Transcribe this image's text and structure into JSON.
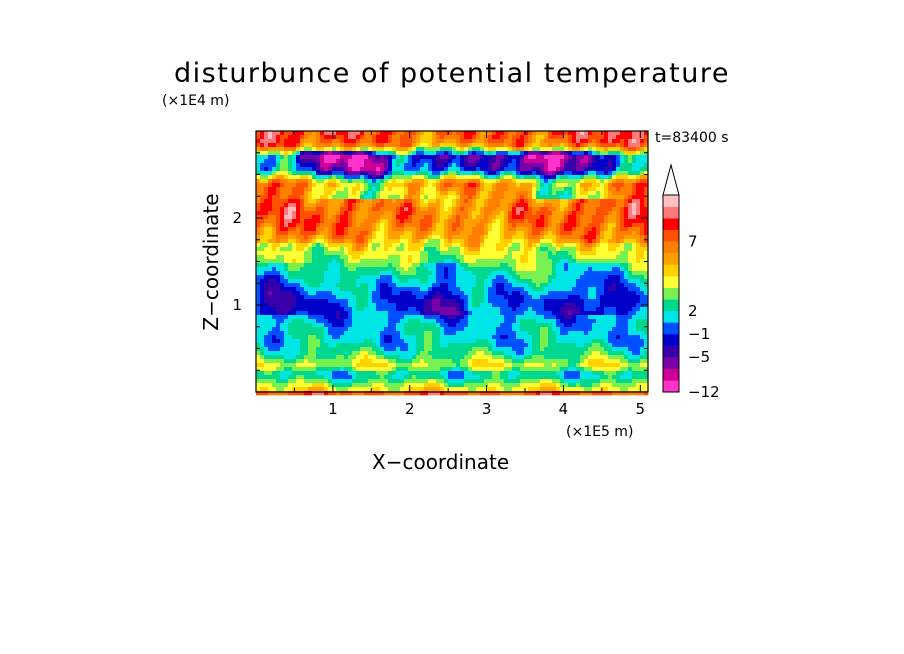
{
  "chart_data": {
    "type": "heatmap",
    "title": "disturbunce of potential temperature",
    "time_label": "t=83400 s",
    "xlabel": "X−coordinate",
    "ylabel": "Z−coordinate",
    "x_unit": "(×1E5 m)",
    "y_unit": "(×1E4 m)",
    "xlim": [
      0,
      5.1
    ],
    "ylim": [
      0,
      3.0
    ],
    "x_ticks": [
      1,
      2,
      3,
      4,
      5
    ],
    "x_tick_labels": [
      "1",
      "2",
      "3",
      "4",
      "5"
    ],
    "y_ticks": [
      1,
      2
    ],
    "y_tick_labels": [
      "1",
      "2"
    ],
    "colorbar": {
      "extend": "max",
      "labels": [
        {
          "value": 7,
          "text": "7"
        },
        {
          "value": 2,
          "text": "2"
        },
        {
          "value": -1,
          "text": "−1"
        },
        {
          "value": -5,
          "text": "−5"
        },
        {
          "value": -12,
          "text": "−12"
        }
      ],
      "colors": [
        "#ff33cc",
        "#cc0099",
        "#7a00a8",
        "#3800a8",
        "#0000c8",
        "#0050ff",
        "#00e5e5",
        "#00d890",
        "#78f050",
        "#ffff33",
        "#ffd200",
        "#ffa000",
        "#ff7f00",
        "#ff4f00",
        "#ff0000",
        "#ff7a7a",
        "#ffc0c0"
      ]
    },
    "fields": {
      "description_rows_bottom_to_top_z": [
        0.0,
        0.1,
        0.2,
        0.3,
        0.45,
        0.6,
        0.75,
        0.9,
        1.05,
        1.2,
        1.35,
        1.5,
        1.65,
        1.8,
        1.95,
        2.1,
        2.25,
        2.4,
        2.55,
        2.7,
        2.85,
        3.0
      ],
      "row_band_levels": [
        10,
        8,
        6,
        9,
        7,
        6,
        6,
        5,
        5,
        6,
        7,
        8,
        9,
        11,
        12,
        12,
        11,
        12,
        5,
        4,
        12,
        13
      ]
    }
  }
}
